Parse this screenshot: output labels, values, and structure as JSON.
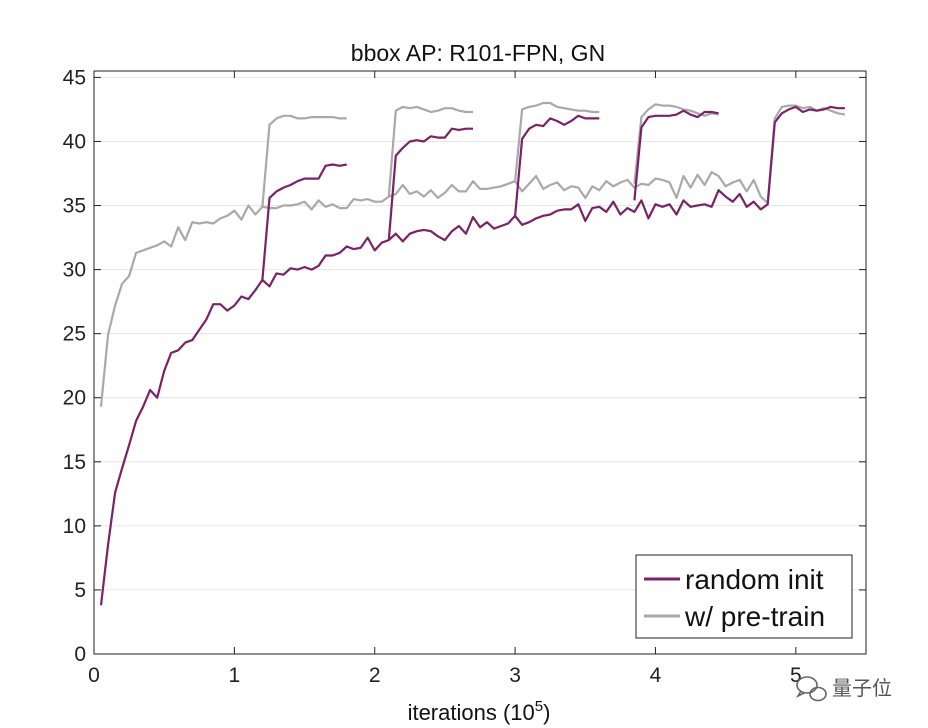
{
  "chart_data": {
    "type": "line",
    "title": "bbox AP: R101-FPN, GN",
    "xlabel": "iterations (10",
    "xlabel_sup": "5",
    "xlabel_close": ")",
    "xlim": [
      0,
      5.5
    ],
    "ylim": [
      0,
      45.5
    ],
    "xticks": [
      0,
      1,
      2,
      3,
      4,
      5
    ],
    "yticks": [
      0,
      5,
      10,
      15,
      20,
      25,
      30,
      35,
      40,
      45
    ],
    "grid": "horizontal",
    "legend_position": "bottom-right",
    "series": [
      {
        "name": "random init",
        "color": "#7b2168",
        "x": [
          0.05,
          0.1,
          0.15,
          0.2,
          0.25,
          0.3,
          0.35,
          0.4,
          0.45,
          0.5,
          0.55,
          0.6,
          0.65,
          0.7,
          0.75,
          0.8,
          0.85,
          0.9,
          0.95,
          1.0,
          1.05,
          1.1,
          1.15,
          1.2,
          1.25,
          1.3,
          1.35,
          1.4,
          1.45,
          1.5,
          1.55,
          1.6,
          1.65,
          1.7,
          1.75,
          1.8,
          1.85,
          1.9,
          1.95,
          2.0,
          2.05,
          2.1,
          2.15,
          2.2,
          2.25,
          2.3,
          2.35,
          2.4,
          2.45,
          2.5,
          2.55,
          2.6,
          2.65,
          2.7,
          2.75,
          2.8,
          2.85,
          2.9,
          2.95,
          3.0,
          3.05,
          3.1,
          3.15,
          3.2,
          3.25,
          3.3,
          3.35,
          3.4,
          3.45,
          3.5,
          3.55,
          3.6,
          3.65,
          3.7,
          3.75,
          3.8,
          3.85,
          3.9,
          3.95,
          4.0,
          4.05,
          4.1,
          4.15,
          4.2,
          4.25,
          4.3,
          4.35,
          4.4,
          4.45,
          4.5,
          4.55,
          4.6,
          4.65,
          4.7,
          4.75,
          4.8,
          4.85,
          4.9,
          4.95,
          5.0,
          5.05,
          5.1,
          5.15,
          5.2,
          5.25,
          5.3,
          5.35
        ],
        "y": [
          3.8,
          8.5,
          12.6,
          14.5,
          16.3,
          18.2,
          19.3,
          20.6,
          20.0,
          22.1,
          23.5,
          23.7,
          24.3,
          24.5,
          25.3,
          26.1,
          27.3,
          27.3,
          26.8,
          27.2,
          27.9,
          27.7,
          28.4,
          29.2,
          28.7,
          29.7,
          29.6,
          30.1,
          30.0,
          30.2,
          30.0,
          30.3,
          31.1,
          31.1,
          31.3,
          31.8,
          31.6,
          31.7,
          32.5,
          31.5,
          32.1,
          32.3,
          32.8,
          32.2,
          32.8,
          33.0,
          33.1,
          33.0,
          32.6,
          32.3,
          33.0,
          33.4,
          32.8,
          34.1,
          33.3,
          33.7,
          33.2,
          33.4,
          33.6,
          34.2,
          33.5,
          33.7,
          34.0,
          34.2,
          34.3,
          34.6,
          34.7,
          34.7,
          35.1,
          33.8,
          34.8,
          34.9,
          34.5,
          35.3,
          34.3,
          34.8,
          34.5,
          35.4,
          34.0,
          35.1,
          34.9,
          35.1,
          34.3,
          35.4,
          34.9,
          35.0,
          35.1,
          34.9,
          36.2,
          35.7,
          35.3,
          35.9,
          34.9,
          35.3,
          34.7,
          35.1,
          41.5,
          42.2,
          42.5,
          42.7,
          42.3,
          42.5,
          42.4,
          42.5,
          42.7,
          42.6,
          42.6
        ],
        "branches": [
          {
            "x": [
              1.2,
              1.25,
              1.3,
              1.35,
              1.4,
              1.45,
              1.5,
              1.55,
              1.6,
              1.65,
              1.7,
              1.75,
              1.8
            ],
            "y": [
              29.2,
              35.6,
              36.1,
              36.4,
              36.6,
              36.9,
              37.1,
              37.1,
              37.1,
              38.1,
              38.2,
              38.1,
              38.2
            ]
          },
          {
            "x": [
              2.1,
              2.15,
              2.2,
              2.25,
              2.3,
              2.35,
              2.4,
              2.45,
              2.5,
              2.55,
              2.6,
              2.65,
              2.7
            ],
            "y": [
              32.3,
              38.9,
              39.5,
              40.0,
              40.1,
              40.0,
              40.4,
              40.3,
              40.3,
              41.0,
              40.9,
              41.0,
              41.0
            ]
          },
          {
            "x": [
              3.0,
              3.05,
              3.1,
              3.15,
              3.2,
              3.25,
              3.3,
              3.35,
              3.4,
              3.45,
              3.5,
              3.55,
              3.6
            ],
            "y": [
              34.2,
              40.2,
              41.0,
              41.3,
              41.2,
              41.8,
              41.6,
              41.3,
              41.6,
              42.0,
              41.8,
              41.8,
              41.8
            ]
          },
          {
            "x": [
              3.85,
              3.9,
              3.95,
              4.0,
              4.05,
              4.1,
              4.15,
              4.2,
              4.25,
              4.3,
              4.35,
              4.4,
              4.45
            ],
            "y": [
              35.4,
              41.1,
              41.9,
              42.0,
              42.0,
              42.0,
              42.1,
              42.4,
              42.1,
              41.9,
              42.3,
              42.3,
              42.2
            ]
          }
        ]
      },
      {
        "name": "w/ pre-train",
        "color": "#a9a9a9",
        "x": [
          0.05,
          0.1,
          0.15,
          0.2,
          0.25,
          0.3,
          0.35,
          0.4,
          0.45,
          0.5,
          0.55,
          0.6,
          0.65,
          0.7,
          0.75,
          0.8,
          0.85,
          0.9,
          0.95,
          1.0,
          1.05,
          1.1,
          1.15,
          1.2,
          1.25,
          1.3,
          1.35,
          1.4,
          1.45,
          1.5,
          1.55,
          1.6,
          1.65,
          1.7,
          1.75,
          1.8,
          1.85,
          1.9,
          1.95,
          2.0,
          2.05,
          2.1,
          2.15,
          2.2,
          2.25,
          2.3,
          2.35,
          2.4,
          2.45,
          2.5,
          2.55,
          2.6,
          2.65,
          2.7,
          2.75,
          2.8,
          2.85,
          2.9,
          2.95,
          3.0,
          3.05,
          3.1,
          3.15,
          3.2,
          3.25,
          3.3,
          3.35,
          3.4,
          3.45,
          3.5,
          3.55,
          3.6,
          3.65,
          3.7,
          3.75,
          3.8,
          3.85,
          3.9,
          3.95,
          4.0,
          4.05,
          4.1,
          4.15,
          4.2,
          4.25,
          4.3,
          4.35,
          4.4,
          4.45,
          4.5,
          4.55,
          4.6,
          4.65,
          4.7,
          4.75,
          4.8,
          4.85,
          4.9,
          4.95,
          5.0,
          5.05,
          5.1,
          5.15,
          5.2,
          5.25,
          5.3,
          5.35
        ],
        "y": [
          19.3,
          24.9,
          27.2,
          28.9,
          29.5,
          31.3,
          31.5,
          31.7,
          31.9,
          32.2,
          31.8,
          33.3,
          32.3,
          33.7,
          33.6,
          33.7,
          33.6,
          34.0,
          34.2,
          34.6,
          33.9,
          35.0,
          34.3,
          34.9,
          34.8,
          34.8,
          35.0,
          35.0,
          35.1,
          35.3,
          34.7,
          35.4,
          34.9,
          35.1,
          34.8,
          34.8,
          35.5,
          35.4,
          35.5,
          35.3,
          35.3,
          35.7,
          35.9,
          36.6,
          35.9,
          36.1,
          35.7,
          36.2,
          35.6,
          36.0,
          36.6,
          36.1,
          36.1,
          36.9,
          36.3,
          36.3,
          36.4,
          36.5,
          36.7,
          36.9,
          36.1,
          36.7,
          37.3,
          36.3,
          36.6,
          36.8,
          36.2,
          36.5,
          36.4,
          35.6,
          36.5,
          36.2,
          36.9,
          36.5,
          36.8,
          37.0,
          36.4,
          36.7,
          36.6,
          37.1,
          37.0,
          36.8,
          35.6,
          37.3,
          36.4,
          37.4,
          36.6,
          37.6,
          37.3,
          36.5,
          36.8,
          37.0,
          36.1,
          37.0,
          35.7,
          35.2,
          41.8,
          42.7,
          42.8,
          42.8,
          42.6,
          42.7,
          42.4,
          42.6,
          42.4,
          42.2,
          42.1
        ],
        "branches": [
          {
            "x": [
              1.2,
              1.25,
              1.3,
              1.35,
              1.4,
              1.45,
              1.5,
              1.55,
              1.6,
              1.65,
              1.7,
              1.75,
              1.8
            ],
            "y": [
              34.9,
              41.3,
              41.8,
              42.0,
              42.0,
              41.8,
              41.8,
              41.9,
              41.9,
              41.9,
              41.9,
              41.8,
              41.8
            ]
          },
          {
            "x": [
              2.1,
              2.15,
              2.2,
              2.25,
              2.3,
              2.35,
              2.4,
              2.45,
              2.5,
              2.55,
              2.6,
              2.65,
              2.7
            ],
            "y": [
              35.7,
              42.4,
              42.7,
              42.6,
              42.7,
              42.5,
              42.3,
              42.4,
              42.6,
              42.6,
              42.4,
              42.3,
              42.3
            ]
          },
          {
            "x": [
              3.0,
              3.05,
              3.1,
              3.15,
              3.2,
              3.25,
              3.3,
              3.35,
              3.4,
              3.45,
              3.5,
              3.55,
              3.6
            ],
            "y": [
              36.9,
              42.5,
              42.7,
              42.8,
              43.0,
              43.0,
              42.7,
              42.6,
              42.5,
              42.4,
              42.4,
              42.3,
              42.3
            ]
          },
          {
            "x": [
              3.85,
              3.9,
              3.95,
              4.0,
              4.05,
              4.1,
              4.15,
              4.2,
              4.25,
              4.3,
              4.35,
              4.4,
              4.45
            ],
            "y": [
              36.7,
              41.9,
              42.5,
              42.9,
              42.8,
              42.8,
              42.7,
              42.5,
              42.4,
              42.2,
              42.0,
              42.2,
              42.1
            ]
          }
        ]
      }
    ]
  },
  "watermark": {
    "icon": "wechat-icon",
    "text": "量子位"
  }
}
